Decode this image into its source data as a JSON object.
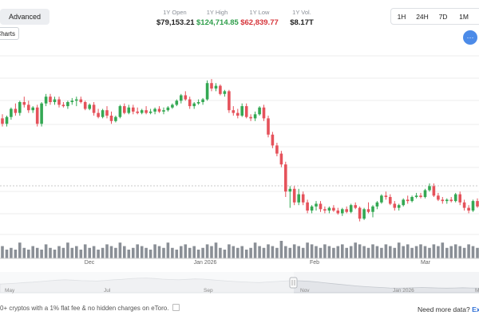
{
  "toolbar": {
    "advanced_label": "Advanced",
    "charts_label": "Charts",
    "menu_label": "···"
  },
  "stats": [
    {
      "label": "1Y Open",
      "value": "$79,153.21",
      "color": "#222222"
    },
    {
      "label": "1Y High",
      "value": "$124,714.85",
      "color": "#2e9e4a"
    },
    {
      "label": "1Y Low",
      "value": "$62,839.77",
      "color": "#d6343a"
    },
    {
      "label": "1Y Vol.",
      "value": "$8.17T",
      "color": "#222222"
    }
  ],
  "ranges": [
    "1H",
    "24H",
    "7D",
    "1M"
  ],
  "colors": {
    "up": "#34a853",
    "down": "#e5525b",
    "volume": "#8a8f96",
    "accent": "#4c8be8"
  },
  "chart_data": {
    "type": "candlestick",
    "x_ticks": [
      "Dec",
      "Jan 2026",
      "Feb",
      "Mar"
    ],
    "y_ticks": [],
    "candles": [
      {
        "o": 88,
        "h": 91,
        "l": 82,
        "c": 84
      },
      {
        "o": 84,
        "h": 90,
        "l": 82,
        "c": 89
      },
      {
        "o": 89,
        "h": 96,
        "l": 87,
        "c": 95
      },
      {
        "o": 95,
        "h": 99,
        "l": 90,
        "c": 92
      },
      {
        "o": 92,
        "h": 101,
        "l": 90,
        "c": 100
      },
      {
        "o": 100,
        "h": 104,
        "l": 96,
        "c": 98
      },
      {
        "o": 98,
        "h": 101,
        "l": 92,
        "c": 94
      },
      {
        "o": 94,
        "h": 97,
        "l": 92,
        "c": 96
      },
      {
        "o": 96,
        "h": 98,
        "l": 82,
        "c": 84
      },
      {
        "o": 84,
        "h": 100,
        "l": 82,
        "c": 99
      },
      {
        "o": 99,
        "h": 106,
        "l": 97,
        "c": 104
      },
      {
        "o": 104,
        "h": 106,
        "l": 98,
        "c": 100
      },
      {
        "o": 100,
        "h": 104,
        "l": 98,
        "c": 102
      },
      {
        "o": 102,
        "h": 104,
        "l": 96,
        "c": 98
      },
      {
        "o": 98,
        "h": 100,
        "l": 96,
        "c": 97
      },
      {
        "o": 97,
        "h": 101,
        "l": 95,
        "c": 100
      },
      {
        "o": 100,
        "h": 103,
        "l": 98,
        "c": 101
      },
      {
        "o": 101,
        "h": 104,
        "l": 97,
        "c": 102
      },
      {
        "o": 102,
        "h": 104,
        "l": 99,
        "c": 100
      },
      {
        "o": 100,
        "h": 101,
        "l": 94,
        "c": 95
      },
      {
        "o": 95,
        "h": 99,
        "l": 94,
        "c": 98
      },
      {
        "o": 98,
        "h": 100,
        "l": 90,
        "c": 92
      },
      {
        "o": 92,
        "h": 95,
        "l": 88,
        "c": 89
      },
      {
        "o": 89,
        "h": 95,
        "l": 88,
        "c": 94
      },
      {
        "o": 94,
        "h": 97,
        "l": 88,
        "c": 90
      },
      {
        "o": 90,
        "h": 93,
        "l": 84,
        "c": 86
      },
      {
        "o": 86,
        "h": 90,
        "l": 85,
        "c": 89
      },
      {
        "o": 89,
        "h": 98,
        "l": 88,
        "c": 97
      },
      {
        "o": 97,
        "h": 99,
        "l": 91,
        "c": 92
      },
      {
        "o": 92,
        "h": 98,
        "l": 91,
        "c": 96
      },
      {
        "o": 96,
        "h": 98,
        "l": 91,
        "c": 93
      },
      {
        "o": 93,
        "h": 96,
        "l": 91,
        "c": 92
      },
      {
        "o": 92,
        "h": 95,
        "l": 91,
        "c": 94
      },
      {
        "o": 94,
        "h": 97,
        "l": 91,
        "c": 92
      },
      {
        "o": 92,
        "h": 95,
        "l": 91,
        "c": 93
      },
      {
        "o": 93,
        "h": 96,
        "l": 91,
        "c": 95
      },
      {
        "o": 95,
        "h": 97,
        "l": 92,
        "c": 93
      },
      {
        "o": 93,
        "h": 96,
        "l": 91,
        "c": 94
      },
      {
        "o": 94,
        "h": 97,
        "l": 93,
        "c": 96
      },
      {
        "o": 96,
        "h": 99,
        "l": 95,
        "c": 98
      },
      {
        "o": 98,
        "h": 102,
        "l": 97,
        "c": 101
      },
      {
        "o": 101,
        "h": 106,
        "l": 99,
        "c": 105
      },
      {
        "o": 105,
        "h": 108,
        "l": 101,
        "c": 102
      },
      {
        "o": 102,
        "h": 104,
        "l": 95,
        "c": 97
      },
      {
        "o": 97,
        "h": 100,
        "l": 95,
        "c": 99
      },
      {
        "o": 99,
        "h": 102,
        "l": 98,
        "c": 100
      },
      {
        "o": 100,
        "h": 103,
        "l": 98,
        "c": 102
      },
      {
        "o": 102,
        "h": 116,
        "l": 101,
        "c": 114
      },
      {
        "o": 114,
        "h": 117,
        "l": 108,
        "c": 110
      },
      {
        "o": 110,
        "h": 114,
        "l": 108,
        "c": 112
      },
      {
        "o": 112,
        "h": 113,
        "l": 105,
        "c": 106
      },
      {
        "o": 106,
        "h": 109,
        "l": 104,
        "c": 108
      },
      {
        "o": 108,
        "h": 109,
        "l": 92,
        "c": 94
      },
      {
        "o": 94,
        "h": 97,
        "l": 90,
        "c": 92
      },
      {
        "o": 92,
        "h": 95,
        "l": 88,
        "c": 90
      },
      {
        "o": 90,
        "h": 99,
        "l": 89,
        "c": 97
      },
      {
        "o": 97,
        "h": 99,
        "l": 88,
        "c": 89
      },
      {
        "o": 89,
        "h": 91,
        "l": 86,
        "c": 88
      },
      {
        "o": 88,
        "h": 93,
        "l": 86,
        "c": 91
      },
      {
        "o": 91,
        "h": 97,
        "l": 90,
        "c": 96
      },
      {
        "o": 96,
        "h": 98,
        "l": 86,
        "c": 88
      },
      {
        "o": 88,
        "h": 90,
        "l": 74,
        "c": 76
      },
      {
        "o": 76,
        "h": 78,
        "l": 66,
        "c": 68
      },
      {
        "o": 68,
        "h": 70,
        "l": 60,
        "c": 62
      },
      {
        "o": 62,
        "h": 64,
        "l": 52,
        "c": 54
      },
      {
        "o": 54,
        "h": 56,
        "l": 30,
        "c": 34
      },
      {
        "o": 34,
        "h": 38,
        "l": 22,
        "c": 36
      },
      {
        "o": 36,
        "h": 38,
        "l": 24,
        "c": 26
      },
      {
        "o": 26,
        "h": 36,
        "l": 24,
        "c": 32
      },
      {
        "o": 32,
        "h": 34,
        "l": 24,
        "c": 26
      },
      {
        "o": 26,
        "h": 28,
        "l": 18,
        "c": 20
      },
      {
        "o": 20,
        "h": 24,
        "l": 18,
        "c": 23
      },
      {
        "o": 23,
        "h": 27,
        "l": 20,
        "c": 25
      },
      {
        "o": 25,
        "h": 27,
        "l": 19,
        "c": 21
      },
      {
        "o": 21,
        "h": 23,
        "l": 18,
        "c": 20
      },
      {
        "o": 20,
        "h": 23,
        "l": 18,
        "c": 22
      },
      {
        "o": 22,
        "h": 24,
        "l": 19,
        "c": 20
      },
      {
        "o": 20,
        "h": 22,
        "l": 17,
        "c": 18
      },
      {
        "o": 18,
        "h": 22,
        "l": 16,
        "c": 21
      },
      {
        "o": 21,
        "h": 23,
        "l": 18,
        "c": 19
      },
      {
        "o": 19,
        "h": 25,
        "l": 18,
        "c": 24
      },
      {
        "o": 24,
        "h": 26,
        "l": 21,
        "c": 22
      },
      {
        "o": 22,
        "h": 23,
        "l": 12,
        "c": 14
      },
      {
        "o": 14,
        "h": 22,
        "l": 13,
        "c": 21
      },
      {
        "o": 21,
        "h": 26,
        "l": 18,
        "c": 19
      },
      {
        "o": 19,
        "h": 24,
        "l": 15,
        "c": 23
      },
      {
        "o": 23,
        "h": 27,
        "l": 21,
        "c": 26
      },
      {
        "o": 26,
        "h": 32,
        "l": 25,
        "c": 31
      },
      {
        "o": 31,
        "h": 34,
        "l": 28,
        "c": 30
      },
      {
        "o": 30,
        "h": 32,
        "l": 24,
        "c": 25
      },
      {
        "o": 25,
        "h": 27,
        "l": 20,
        "c": 22
      },
      {
        "o": 22,
        "h": 25,
        "l": 20,
        "c": 24
      },
      {
        "o": 24,
        "h": 29,
        "l": 23,
        "c": 28
      },
      {
        "o": 28,
        "h": 31,
        "l": 25,
        "c": 27
      },
      {
        "o": 27,
        "h": 31,
        "l": 26,
        "c": 30
      },
      {
        "o": 30,
        "h": 33,
        "l": 29,
        "c": 31
      },
      {
        "o": 31,
        "h": 33,
        "l": 29,
        "c": 30
      },
      {
        "o": 30,
        "h": 36,
        "l": 29,
        "c": 35
      },
      {
        "o": 35,
        "h": 40,
        "l": 34,
        "c": 38
      },
      {
        "o": 38,
        "h": 40,
        "l": 30,
        "c": 31
      },
      {
        "o": 31,
        "h": 33,
        "l": 27,
        "c": 28
      },
      {
        "o": 28,
        "h": 30,
        "l": 25,
        "c": 27
      },
      {
        "o": 27,
        "h": 29,
        "l": 25,
        "c": 28
      },
      {
        "o": 28,
        "h": 30,
        "l": 26,
        "c": 27
      },
      {
        "o": 27,
        "h": 33,
        "l": 26,
        "c": 32
      },
      {
        "o": 32,
        "h": 34,
        "l": 24,
        "c": 26
      },
      {
        "o": 26,
        "h": 28,
        "l": 20,
        "c": 22
      },
      {
        "o": 22,
        "h": 24,
        "l": 18,
        "c": 20
      },
      {
        "o": 20,
        "h": 28,
        "l": 19,
        "c": 27
      },
      {
        "o": 27,
        "h": 29,
        "l": 22,
        "c": 23
      }
    ],
    "volume": [
      7,
      5,
      6,
      5,
      9,
      6,
      5,
      7,
      6,
      5,
      8,
      6,
      5,
      7,
      6,
      9,
      6,
      7,
      5,
      8,
      6,
      7,
      5,
      6,
      8,
      7,
      6,
      9,
      7,
      5,
      6,
      8,
      7,
      6,
      5,
      8,
      7,
      6,
      9,
      6,
      5,
      7,
      8,
      6,
      7,
      5,
      6,
      8,
      7,
      9,
      6,
      5,
      8,
      7,
      6,
      7,
      5,
      6,
      9,
      7,
      6,
      8,
      7,
      6,
      10,
      7,
      6,
      8,
      7,
      6,
      9,
      8,
      7,
      6,
      8,
      7,
      6,
      7,
      8,
      6,
      7,
      9,
      8,
      7,
      6,
      8,
      7,
      6,
      8,
      7,
      6,
      9,
      7,
      8,
      6,
      7,
      8,
      7,
      6,
      8,
      7,
      9,
      6,
      7,
      8,
      7,
      6,
      8,
      7,
      6
    ],
    "navigator": {
      "labels": [
        "May",
        "Jul",
        "Sep",
        "Nov",
        "Jan 2026",
        "Mar"
      ],
      "series": [
        40,
        42,
        44,
        47,
        49,
        52,
        55,
        58,
        60,
        58,
        56,
        55,
        54,
        57,
        60,
        62,
        65,
        67,
        68,
        66,
        63,
        61,
        60,
        62,
        64,
        63,
        60,
        57,
        54,
        52,
        50,
        48,
        47,
        50,
        52,
        54,
        56,
        55,
        53,
        50,
        46,
        42,
        38,
        35,
        31,
        28,
        26,
        24,
        22,
        21,
        22,
        23,
        24,
        23,
        22,
        21,
        22,
        23,
        22,
        21
      ]
    }
  },
  "footer": {
    "left_text": "0+ cryptos with a 1% flat fee & no hidden charges on eToro.",
    "right_prefix": "Need more data?",
    "right_link": "Exp"
  }
}
